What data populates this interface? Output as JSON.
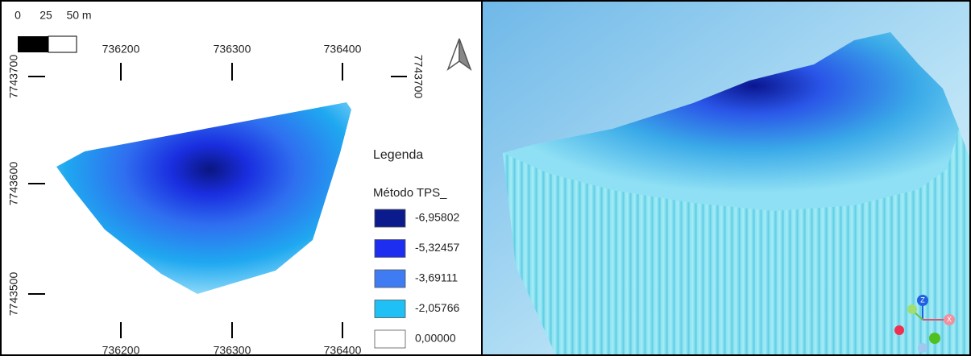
{
  "scale_bar": {
    "labels": [
      "0",
      "25",
      "50 m"
    ]
  },
  "map": {
    "top_labels": [
      "736200",
      "736300",
      "736400"
    ],
    "bottom_labels": [
      "736200",
      "736300",
      "736400"
    ],
    "left_labels": [
      "7743700",
      "7743600",
      "7743500"
    ],
    "right_labels": [
      "7743700"
    ]
  },
  "legend": {
    "title": "Legenda",
    "layer": "Método TPS_",
    "items": [
      {
        "label": "-6,95802",
        "color": "#0b1a8c"
      },
      {
        "label": "-5,32457",
        "color": "#1d2ef0"
      },
      {
        "label": "-3,69111",
        "color": "#3f7bf2"
      },
      {
        "label": "-2,05766",
        "color": "#1ec0f5"
      },
      {
        "label": "0,00000",
        "color": "#ffffff"
      }
    ]
  },
  "gizmo": {
    "z": "Z",
    "x": "X"
  }
}
